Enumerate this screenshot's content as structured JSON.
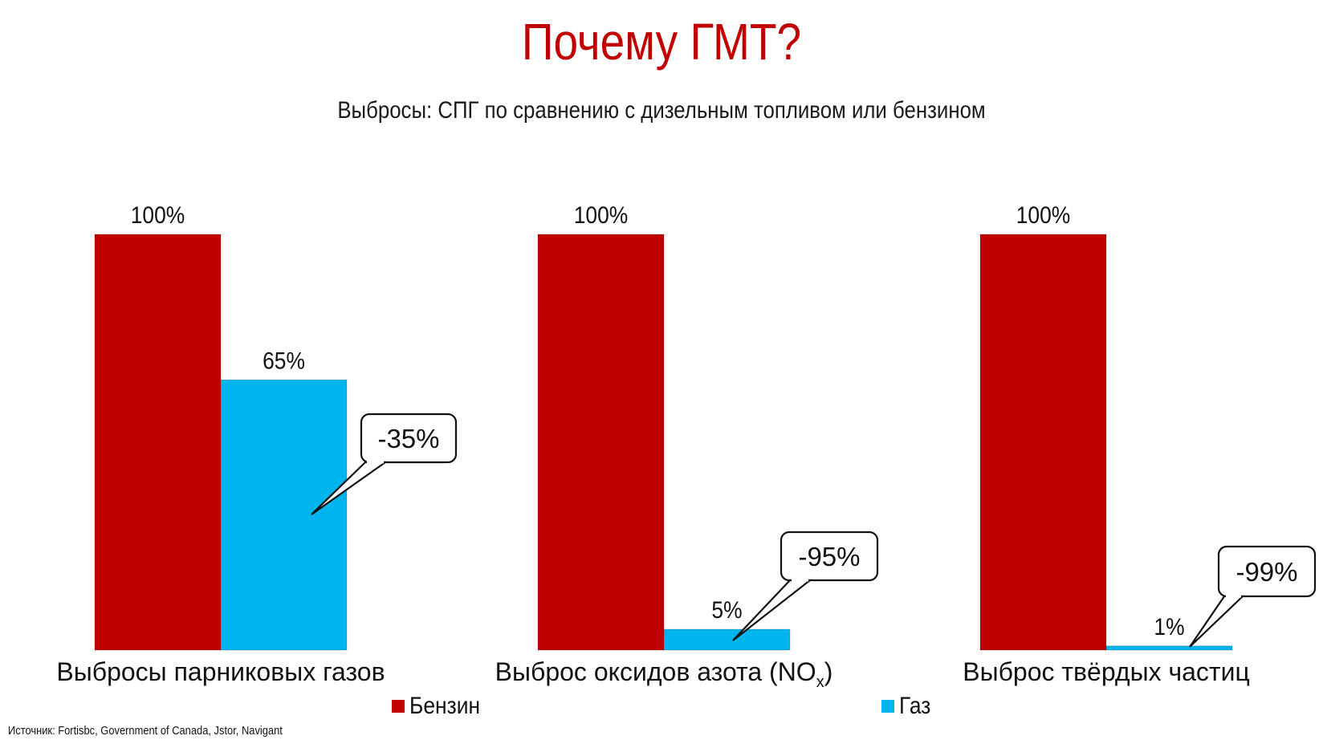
{
  "title": "Почему ГМТ?",
  "subtitle": "Выбросы: СПГ по сравнению с дизельным топливом или бензином",
  "source": "Источник: Fortisbc, Government of Canada, Jstor, Navigant",
  "colors": {
    "accent": "#c00000",
    "gasoline": "#c00000",
    "gas": "#00b4ee"
  },
  "legend": [
    {
      "label": "Бензин",
      "color": "#c00000"
    },
    {
      "label": "Газ",
      "color": "#00b4ee"
    }
  ],
  "chart_data": {
    "type": "bar",
    "categories": [
      "Выбросы парниковых газов",
      "Выброс оксидов азота (NO",
      "Выброс твёрдых частиц"
    ],
    "category_subscripts": [
      "",
      "x)",
      ""
    ],
    "series": [
      {
        "name": "Бензин",
        "values": [
          100,
          100,
          100
        ]
      },
      {
        "name": "Газ",
        "values": [
          65,
          5,
          1
        ]
      }
    ],
    "data_labels": [
      [
        "100%",
        "100%",
        "100%"
      ],
      [
        "65%",
        "5%",
        "1%"
      ]
    ],
    "annotations": [
      "-35%",
      "-95%",
      "-99%"
    ],
    "ylim": [
      0,
      100
    ],
    "grid": false,
    "legend_position": "bottom"
  }
}
